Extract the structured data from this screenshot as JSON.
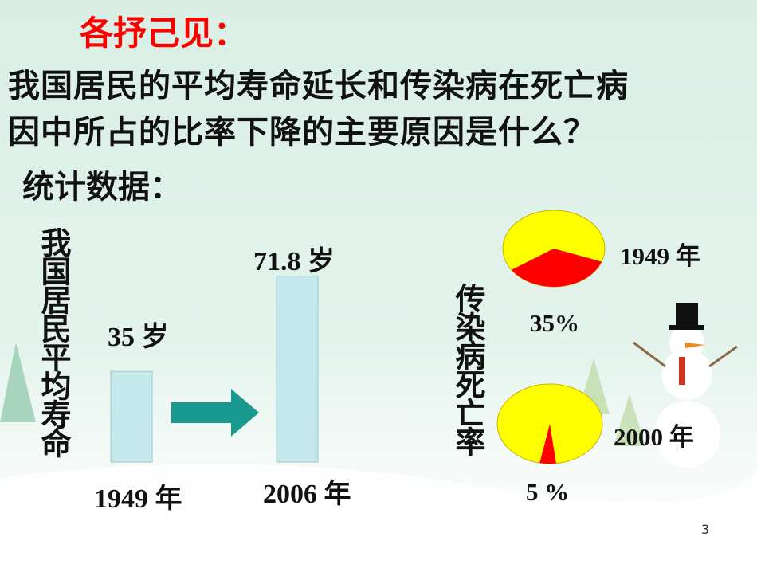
{
  "header": {
    "title": "各抒己见：",
    "question": [
      "我国居民的平均寿命延长和传染病在死亡病",
      "因中所占的比率下降的主要原因是什么？"
    ],
    "section": "统计数据："
  },
  "chart_data": [
    {
      "type": "bar",
      "label": "我国居民平均寿命",
      "categories": [
        "1949 年",
        "2006 年"
      ],
      "values": [
        35,
        71.8
      ],
      "value_labels": [
        "35 岁",
        "71.8 岁"
      ],
      "color": "#c5e8ea"
    },
    {
      "type": "pie",
      "label": "传染病死亡率",
      "categories": [
        "1949 年",
        "2000 年"
      ],
      "values": [
        35,
        5
      ],
      "value_labels": [
        "35%",
        "5 %"
      ],
      "color": "#ff0000",
      "background_color": "#ffff00"
    }
  ],
  "page_number": "3"
}
